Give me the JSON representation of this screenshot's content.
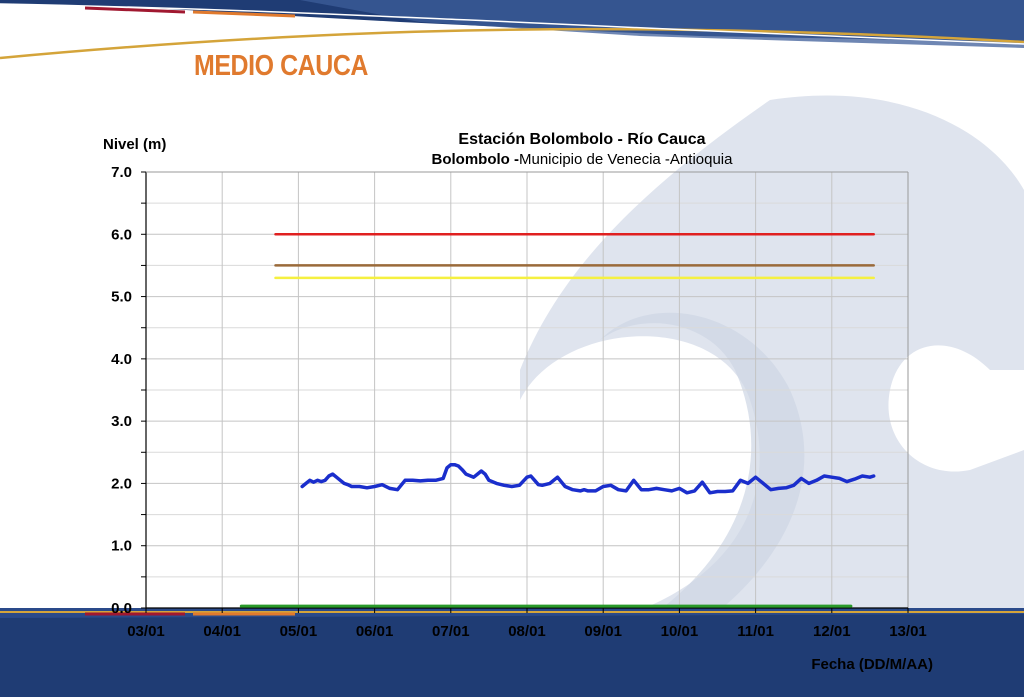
{
  "slide": {
    "title": "MEDIO CAUCA",
    "colors": {
      "title": "#e07a2e",
      "banner_dark": "#1f3c74",
      "banner_mid": "#3d5d99",
      "banner_gold": "#d4a43a"
    }
  },
  "chart_data": {
    "type": "line",
    "title": "Estación Bolombolo - Río Cauca",
    "subtitle_bold": "Bolombolo -",
    "subtitle_regular": "Municipio de Venecia -Antioquia",
    "ylabel": "Nivel (m)",
    "xlabel": "Fecha (DD/M/AA)",
    "ylim": [
      0,
      7
    ],
    "yticks": [
      "0.0",
      "1.0",
      "2.0",
      "3.0",
      "4.0",
      "5.0",
      "6.0",
      "7.0"
    ],
    "xlim": [
      0,
      10
    ],
    "xticks": [
      "03/01",
      "04/01",
      "05/01",
      "06/01",
      "07/01",
      "08/01",
      "09/01",
      "10/01",
      "11/01",
      "12/01",
      "13/01"
    ],
    "grid": true,
    "series": [
      {
        "color": "#e02020",
        "stroke": 2.5,
        "x": [
          1.7,
          9.55
        ],
        "y": [
          6.0,
          6.0
        ]
      },
      {
        "color": "#9a6a3a",
        "stroke": 2.5,
        "x": [
          1.7,
          9.55
        ],
        "y": [
          5.5,
          5.5
        ]
      },
      {
        "color": "#f5f040",
        "stroke": 2.5,
        "x": [
          1.7,
          9.55
        ],
        "y": [
          5.3,
          5.3
        ]
      },
      {
        "color": "#2a9a2a",
        "stroke": 3,
        "x": [
          1.25,
          9.25
        ],
        "y": [
          0.03,
          0.03
        ]
      },
      {
        "color": "#1a2ecc",
        "stroke": 3.5,
        "x": [
          2.05,
          2.1,
          2.15,
          2.2,
          2.25,
          2.3,
          2.35,
          2.4,
          2.45,
          2.5,
          2.55,
          2.6,
          2.65,
          2.7,
          2.8,
          2.9,
          3.0,
          3.1,
          3.2,
          3.3,
          3.4,
          3.5,
          3.6,
          3.7,
          3.8,
          3.9,
          3.95,
          4.0,
          4.05,
          4.1,
          4.15,
          4.2,
          4.3,
          4.35,
          4.4,
          4.45,
          4.5,
          4.6,
          4.7,
          4.8,
          4.9,
          5.0,
          5.05,
          5.1,
          5.15,
          5.2,
          5.3,
          5.4,
          5.5,
          5.6,
          5.7,
          5.75,
          5.8,
          5.9,
          6.0,
          6.1,
          6.2,
          6.3,
          6.4,
          6.5,
          6.6,
          6.7,
          6.8,
          6.9,
          7.0,
          7.1,
          7.2,
          7.3,
          7.4,
          7.5,
          7.6,
          7.7,
          7.8,
          7.9,
          8.0,
          8.1,
          8.2,
          8.3,
          8.4,
          8.5,
          8.6,
          8.7,
          8.8,
          8.9,
          9.0,
          9.1,
          9.2,
          9.3,
          9.4,
          9.5,
          9.55
        ],
        "y": [
          1.95,
          2.0,
          2.05,
          2.02,
          2.05,
          2.03,
          2.05,
          2.12,
          2.15,
          2.1,
          2.05,
          2.0,
          1.98,
          1.95,
          1.95,
          1.93,
          1.95,
          1.98,
          1.92,
          1.9,
          2.05,
          2.05,
          2.04,
          2.05,
          2.05,
          2.08,
          2.25,
          2.3,
          2.3,
          2.28,
          2.22,
          2.15,
          2.1,
          2.15,
          2.2,
          2.15,
          2.05,
          2.0,
          1.97,
          1.95,
          1.97,
          2.1,
          2.12,
          2.05,
          1.98,
          1.97,
          2.0,
          2.1,
          1.95,
          1.9,
          1.88,
          1.9,
          1.88,
          1.88,
          1.95,
          1.97,
          1.9,
          1.88,
          2.05,
          1.9,
          1.9,
          1.92,
          1.9,
          1.88,
          1.92,
          1.85,
          1.88,
          2.02,
          1.85,
          1.87,
          1.87,
          1.88,
          2.05,
          2.0,
          2.1,
          2.0,
          1.9,
          1.92,
          1.93,
          1.97,
          2.08,
          2.0,
          2.05,
          2.12,
          2.1,
          2.08,
          2.03,
          2.07,
          2.12,
          2.1,
          2.12
        ]
      }
    ]
  }
}
